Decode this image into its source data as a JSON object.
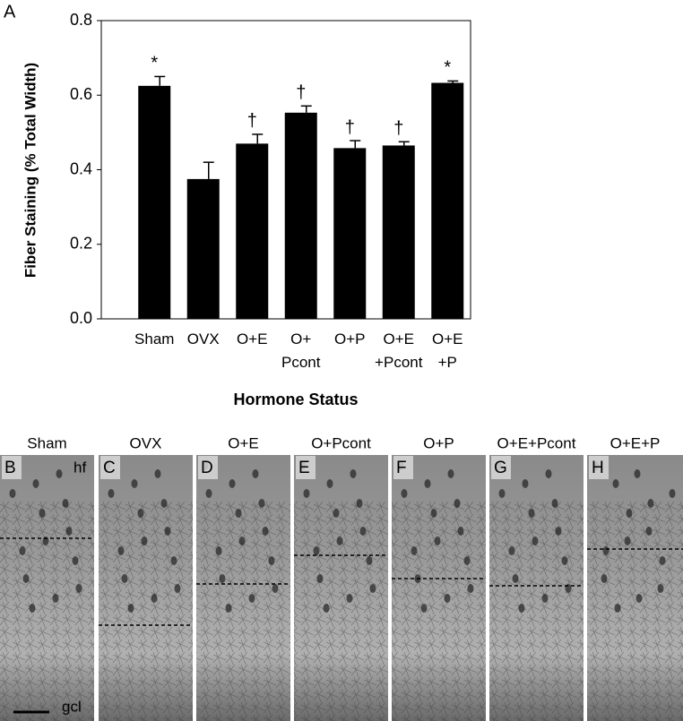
{
  "chart_data": {
    "type": "bar",
    "panel_label": "A",
    "ylabel": "Fiber Staining (% Total Width)",
    "xlabel": "Hormone Status",
    "categories": [
      "Sham",
      "OVX",
      "O+E",
      "O+ Pcont",
      "O+P",
      "O+E +Pcont",
      "O+E +P"
    ],
    "values": [
      0.625,
      0.375,
      0.47,
      0.553,
      0.458,
      0.465,
      0.633
    ],
    "errors": [
      0.025,
      0.045,
      0.025,
      0.018,
      0.02,
      0.01,
      0.005
    ],
    "annotations": [
      "*",
      null,
      "†",
      "†",
      "†",
      "†",
      "*"
    ],
    "color": "#000000",
    "ylim": [
      0,
      0.8
    ],
    "yticks": [
      {
        "value": 0,
        "label": "0.0"
      },
      0.2,
      0.4,
      0.6,
      0.8
    ]
  },
  "micrographs": {
    "panels": [
      {
        "letter": "B",
        "label": "Sham"
      },
      {
        "letter": "C",
        "label": "OVX"
      },
      {
        "letter": "D",
        "label": "O+E"
      },
      {
        "letter": "E",
        "label": "O+Pcont"
      },
      {
        "letter": "F",
        "label": "O+P"
      },
      {
        "letter": "G",
        "label": "O+E+Pcont"
      },
      {
        "letter": "H",
        "label": "O+E+P"
      }
    ],
    "top_layer": "hf",
    "bottom_layer": "gcl"
  }
}
